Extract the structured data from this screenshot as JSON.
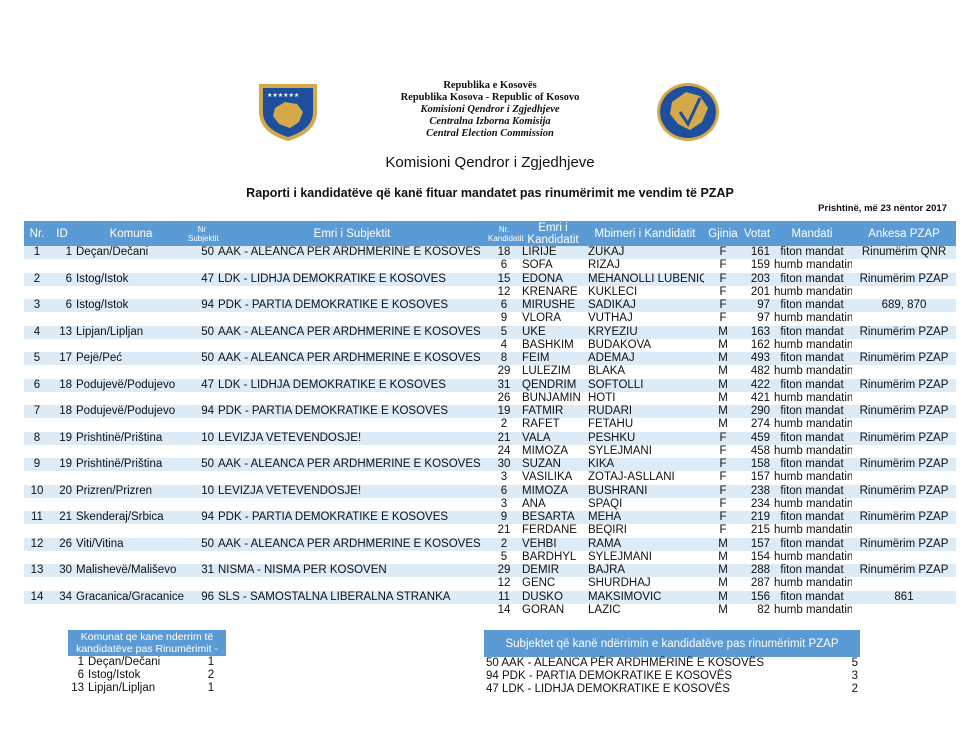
{
  "header": {
    "line1": "Republika e Kosovës",
    "line2": "Republika Kosova - Republic of Kosovo",
    "line3": "Komisioni Qendror i Zgjedhjeve",
    "line4": "Centralna Izborna Komisija",
    "line5": "Central Election Commission",
    "org": "Komisioni Qendror i Zgjedhjeve",
    "title": "Raporti i kandidatëve që kanë fituar mandatet pas rinumërimit me vendim të PZAP",
    "date": "Prishtinë, më 23 nëntor 2017",
    "colors": {
      "shield_blue": "#1d4f9c",
      "gold": "#d4a94a",
      "table_header": "#5b9bd5",
      "row_band": "#ddebf7"
    }
  },
  "columns": {
    "nr": "Nr.",
    "id": "ID",
    "komuna": "Komuna",
    "nr_subjektit": "Nr Subjektit",
    "emri_subjektit": "Emri i Subjektit",
    "nr_kandidatit": "Nr. Kandidatit",
    "emri_kandidatit": "Emri i Kandidatit",
    "mbiemri": "Mbimeri i Kandidatit",
    "gjinia": "Gjinia",
    "votat": "Votat",
    "mandati": "Mandati",
    "ankesa": "Ankesa PZAP"
  },
  "groups": [
    {
      "nr": "1",
      "id": "1",
      "komuna": "Deçan/Dečani",
      "nrs": "50",
      "subjekt": "AAK - ALEANCA PËR ARDHMËRINË E KOSOVËS",
      "c": [
        [
          "18",
          "LIRIJE",
          "ZUKAJ",
          "F",
          "161",
          "fiton mandat",
          "Rinumërim QNR"
        ],
        [
          "6",
          "SOFA",
          "RIZAJ",
          "F",
          "159",
          "humb mandatin",
          ""
        ]
      ]
    },
    {
      "nr": "2",
      "id": "6",
      "komuna": "Istog/Istok",
      "nrs": "47",
      "subjekt": "LDK - LIDHJA DEMOKRATIKE E KOSOVËS",
      "c": [
        [
          "15",
          "EDONA",
          "MEHANOLLI LUBENIQI",
          "F",
          "203",
          "fiton mandat",
          "Rinumërim PZAP"
        ],
        [
          "12",
          "KRENARE",
          "KUKLECI",
          "F",
          "201",
          "humb mandatin",
          ""
        ]
      ]
    },
    {
      "nr": "3",
      "id": "6",
      "komuna": "Istog/Istok",
      "nrs": "94",
      "subjekt": "PDK - PARTIA DEMOKRATIKE E KOSOVËS",
      "c": [
        [
          "6",
          "MIRUSHE",
          "SADIKAJ",
          "F",
          "97",
          "fiton mandat",
          "689, 870"
        ],
        [
          "9",
          "VLORA",
          "VUTHAJ",
          "F",
          "97",
          "humb mandatin",
          ""
        ]
      ]
    },
    {
      "nr": "4",
      "id": "13",
      "komuna": "Lipjan/Lipljan",
      "nrs": "50",
      "subjekt": "AAK - ALEANCA PËR ARDHMËRINË E KOSOVËS",
      "c": [
        [
          "5",
          "UKË",
          "KRYEZIU",
          "M",
          "163",
          "fiton mandat",
          "Rinumërim PZAP"
        ],
        [
          "4",
          "BASHKIM",
          "BUDAKOVA",
          "M",
          "162",
          "humb mandatin",
          ""
        ]
      ]
    },
    {
      "nr": "5",
      "id": "17",
      "komuna": "Pejë/Peć",
      "nrs": "50",
      "subjekt": "AAK - ALEANCA PËR ARDHMËRINË E KOSOVËS",
      "c": [
        [
          "8",
          "FEIM",
          "ADEMAJ",
          "M",
          "493",
          "fiton mandat",
          "Rinumërim PZAP"
        ],
        [
          "29",
          "LULËZIM",
          "BLAKA",
          "M",
          "482",
          "humb mandatin",
          ""
        ]
      ]
    },
    {
      "nr": "6",
      "id": "18",
      "komuna": "Podujevë/Podujevo",
      "nrs": "47",
      "subjekt": "LDK - LIDHJA DEMOKRATIKE E KOSOVËS",
      "c": [
        [
          "31",
          "QENDRIM",
          "SOFTOLLI",
          "M",
          "422",
          "fiton mandat",
          "Rinumërim PZAP"
        ],
        [
          "26",
          "BUNJAMIN",
          "HOTI",
          "M",
          "421",
          "humb mandatin",
          ""
        ]
      ]
    },
    {
      "nr": "7",
      "id": "18",
      "komuna": "Podujevë/Podujevo",
      "nrs": "94",
      "subjekt": "PDK - PARTIA DEMOKRATIKE E KOSOVËS",
      "c": [
        [
          "19",
          "FATMIR",
          "RUDARI",
          "M",
          "290",
          "fiton mandat",
          "Rinumërim PZAP"
        ],
        [
          "2",
          "RAFET",
          "FETAHU",
          "M",
          "274",
          "humb mandatin",
          ""
        ]
      ]
    },
    {
      "nr": "8",
      "id": "19",
      "komuna": "Prishtinë/Priština",
      "nrs": "10",
      "subjekt": "LËVIZJA VETËVENDOSJE!",
      "c": [
        [
          "21",
          "VALA",
          "PESHKU",
          "F",
          "459",
          "fiton mandat",
          "Rinumërim PZAP"
        ],
        [
          "24",
          "MIMOZA",
          "SYLEJMANI",
          "F",
          "458",
          "humb mandatin",
          ""
        ]
      ]
    },
    {
      "nr": "9",
      "id": "19",
      "komuna": "Prishtinë/Priština",
      "nrs": "50",
      "subjekt": "AAK - ALEANCA PËR ARDHMËRINË E KOSOVËS",
      "c": [
        [
          "30",
          "SUZAN",
          "KIKA",
          "F",
          "158",
          "fiton mandat",
          "Rinumërim PZAP"
        ],
        [
          "3",
          "VASILIKA",
          "ZOTAJ-ASLLANI",
          "F",
          "157",
          "humb mandatin",
          ""
        ]
      ]
    },
    {
      "nr": "10",
      "id": "20",
      "komuna": "Prizren/Prizren",
      "nrs": "10",
      "subjekt": "LËVIZJA VETËVENDOSJE!",
      "c": [
        [
          "6",
          "MIMOZA",
          "BUSHRANI",
          "F",
          "238",
          "fiton mandat",
          "Rinumërim PZAP"
        ],
        [
          "3",
          "ANA",
          "SPAQI",
          "F",
          "234",
          "humb mandatin",
          ""
        ]
      ]
    },
    {
      "nr": "11",
      "id": "21",
      "komuna": "Skenderaj/Srbica",
      "nrs": "94",
      "subjekt": "PDK - PARTIA DEMOKRATIKE E KOSOVËS",
      "c": [
        [
          "9",
          "BESARTA",
          "MEHA",
          "F",
          "219",
          "fiton mandat",
          "Rinumërim PZAP"
        ],
        [
          "21",
          "FERDANE",
          "BEQIRI",
          "F",
          "215",
          "humb mandatin",
          ""
        ]
      ]
    },
    {
      "nr": "12",
      "id": "26",
      "komuna": "Viti/Vitina",
      "nrs": "50",
      "subjekt": "AAK - ALEANCA PËR ARDHMËRINË E KOSOVËS",
      "c": [
        [
          "2",
          "VEHBI",
          "RAMA",
          "M",
          "157",
          "fiton mandat",
          "Rinumërim PZAP"
        ],
        [
          "5",
          "BARDHYL",
          "SYLEJMANI",
          "M",
          "154",
          "humb mandatin",
          ""
        ]
      ]
    },
    {
      "nr": "13",
      "id": "30",
      "komuna": "Malishevë/Mališevo",
      "nrs": "31",
      "subjekt": "NISMA - NISMA PËR KOSOVËN",
      "c": [
        [
          "29",
          "DEMIR",
          "BAJRA",
          "M",
          "288",
          "fiton mandat",
          "Rinumërim PZAP"
        ],
        [
          "12",
          "GENC",
          "SHURDHAJ",
          "M",
          "287",
          "humb mandatin",
          ""
        ]
      ]
    },
    {
      "nr": "14",
      "id": "34",
      "komuna": "Gracanica/Gracanice",
      "nrs": "96",
      "subjekt": "SLS - SAMOSTALNA LIBERALNA STRANKA",
      "c": [
        [
          "11",
          "DUŠKO",
          "MAKSIMOVIĆ",
          "M",
          "156",
          "fiton mandat",
          "861"
        ],
        [
          "14",
          "GORAN",
          "LAZIĆ",
          "M",
          "82",
          "humb mandatin",
          ""
        ]
      ]
    }
  ],
  "summary_komuna": {
    "header": "Komunat qe kane nderrim të kandidatëve pas Rinumërimit -",
    "rows": [
      [
        "1",
        "Deçan/Dečani",
        "1"
      ],
      [
        "6",
        "Istog/Istok",
        "2"
      ],
      [
        "13",
        "Lipjan/Lipljan",
        "1"
      ]
    ]
  },
  "summary_subjekt": {
    "header": "Subjektet që kanë ndërrimin e kandidatëve pas rinumërimit PZAP",
    "rows": [
      [
        "50 AAK - ALEANCA PËR ARDHMËRINË E KOSOVËS",
        "5"
      ],
      [
        "94 PDK - PARTIA DEMOKRATIKE E KOSOVËS",
        "3"
      ],
      [
        "47 LDK - LIDHJA DEMOKRATIKE E KOSOVËS",
        "2"
      ]
    ]
  }
}
